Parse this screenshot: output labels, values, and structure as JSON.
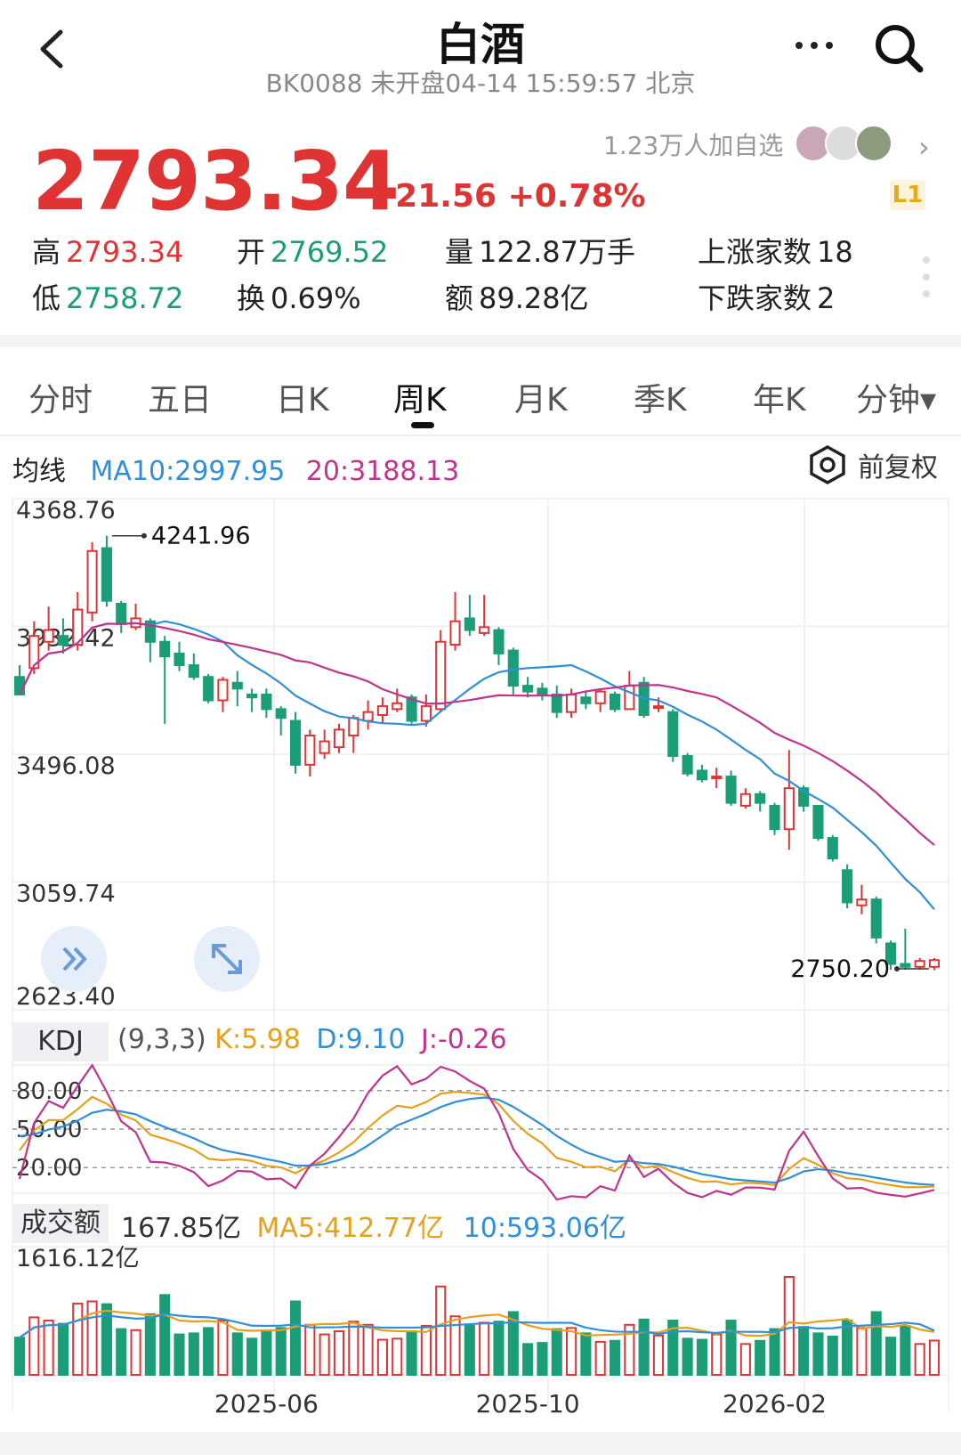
{
  "header": {
    "title": "白酒",
    "subtitle": "BK0088 未开盘04-14 15:59:57 北京"
  },
  "quote": {
    "price": "2793.34",
    "change": "+21.56 +0.78%",
    "followers": "1.23万人加自选",
    "level_badge": "L1",
    "stats": {
      "high_label": "高",
      "high": "2793.34",
      "open_label": "开",
      "open": "2769.52",
      "volume_label": "量",
      "volume": "122.87万手",
      "up_label": "上涨家数",
      "up": "18",
      "low_label": "低",
      "low": "2758.72",
      "turnover_label": "换",
      "turnover": "0.69%",
      "amount_label": "额",
      "amount": "89.28亿",
      "down_label": "下跌家数",
      "down": "2"
    }
  },
  "tabs": [
    "分时",
    "五日",
    "日K",
    "周K",
    "月K",
    "季K",
    "年K",
    "分钟▾"
  ],
  "active_tab": "周K",
  "ma": {
    "label": "均线",
    "ma10": "MA10:2997.95",
    "ma20": "20:3188.13"
  },
  "adjust_label": "前复权",
  "kdj": {
    "label": "KDJ",
    "params": "(9,3,3)",
    "k": "K:5.98",
    "d": "D:9.10",
    "j": "J:-0.26"
  },
  "volume_panel": {
    "label": "成交额",
    "value": "167.85亿",
    "ma5": "MA5:412.77亿",
    "ma10": "10:593.06亿"
  },
  "colors": {
    "up": "#e03434",
    "down": "#1b9e77",
    "ma10": "#2f8fd8",
    "ma20": "#c2328f",
    "k": "#e8a01a"
  },
  "chart_data": {
    "type": "candlestick",
    "price_axis_ticks": [
      "4368.76",
      "3932.42",
      "3496.08",
      "3059.74",
      "2623.40"
    ],
    "ylim": [
      2623.4,
      4368.76
    ],
    "max_label": "4241.96",
    "min_label": "2750.20",
    "date_ticks": [
      {
        "index": 17,
        "label": "2025-06"
      },
      {
        "index": 35,
        "label": "2025-10"
      },
      {
        "index": 52,
        "label": "2026-02"
      }
    ],
    "candles": [
      [
        3760,
        3700,
        3800,
        3700
      ],
      [
        3790,
        3900,
        3950,
        3770
      ],
      [
        3880,
        3920,
        4000,
        3850
      ],
      [
        3900,
        3870,
        3960,
        3840
      ],
      [
        3870,
        3990,
        4050,
        3850
      ],
      [
        3980,
        4190,
        4220,
        3950
      ],
      [
        4200,
        4020,
        4242,
        4000
      ],
      [
        4010,
        3940,
        4020,
        3910
      ],
      [
        3930,
        3960,
        4010,
        3920
      ],
      [
        3950,
        3880,
        3960,
        3810
      ],
      [
        3880,
        3830,
        3900,
        3600
      ],
      [
        3840,
        3800,
        3880,
        3780
      ],
      [
        3800,
        3760,
        3840,
        3750
      ],
      [
        3760,
        3680,
        3770,
        3670
      ],
      [
        3680,
        3750,
        3760,
        3640
      ],
      [
        3740,
        3720,
        3780,
        3660
      ],
      [
        3700,
        3690,
        3720,
        3640
      ],
      [
        3700,
        3650,
        3720,
        3620
      ],
      [
        3650,
        3620,
        3660,
        3560
      ],
      [
        3610,
        3460,
        3640,
        3430
      ],
      [
        3460,
        3560,
        3580,
        3420
      ],
      [
        3500,
        3540,
        3580,
        3480
      ],
      [
        3520,
        3580,
        3600,
        3500
      ],
      [
        3560,
        3620,
        3630,
        3500
      ],
      [
        3610,
        3640,
        3680,
        3580
      ],
      [
        3630,
        3660,
        3690,
        3600
      ],
      [
        3650,
        3670,
        3720,
        3640
      ],
      [
        3690,
        3610,
        3700,
        3600
      ],
      [
        3610,
        3660,
        3700,
        3590
      ],
      [
        3650,
        3880,
        3920,
        3640
      ],
      [
        3870,
        3950,
        4050,
        3850
      ],
      [
        3960,
        3920,
        4040,
        3900
      ],
      [
        3910,
        3930,
        4040,
        3900
      ],
      [
        3920,
        3840,
        3930,
        3800
      ],
      [
        3850,
        3730,
        3860,
        3700
      ],
      [
        3730,
        3710,
        3760,
        3690
      ],
      [
        3720,
        3700,
        3740,
        3680
      ],
      [
        3700,
        3640,
        3730,
        3620
      ],
      [
        3640,
        3700,
        3720,
        3620
      ],
      [
        3690,
        3670,
        3710,
        3650
      ],
      [
        3670,
        3710,
        3720,
        3640
      ],
      [
        3700,
        3650,
        3710,
        3640
      ],
      [
        3650,
        3730,
        3780,
        3650
      ],
      [
        3740,
        3630,
        3760,
        3620
      ],
      [
        3660,
        3660,
        3690,
        3640
      ],
      [
        3640,
        3490,
        3650,
        3470
      ],
      [
        3490,
        3430,
        3500,
        3420
      ],
      [
        3440,
        3410,
        3460,
        3400
      ],
      [
        3420,
        3420,
        3450,
        3380
      ],
      [
        3420,
        3330,
        3440,
        3320
      ],
      [
        3320,
        3360,
        3380,
        3310
      ],
      [
        3360,
        3330,
        3370,
        3300
      ],
      [
        3320,
        3240,
        3330,
        3220
      ],
      [
        3240,
        3380,
        3510,
        3170
      ],
      [
        3380,
        3320,
        3390,
        3300
      ],
      [
        3320,
        3210,
        3320,
        3200
      ],
      [
        3210,
        3140,
        3220,
        3130
      ],
      [
        3100,
        2990,
        3120,
        2970
      ],
      [
        2980,
        3000,
        3050,
        2950
      ],
      [
        3000,
        2870,
        3010,
        2850
      ],
      [
        2850,
        2780,
        2860,
        2760
      ],
      [
        2780,
        2770,
        2900,
        2760
      ],
      [
        2770,
        2790,
        2800,
        2760
      ],
      [
        2770,
        2793,
        2800,
        2759
      ]
    ],
    "ma10_label": "MA10",
    "ma20_label": "20",
    "kdj_ticks": [
      "80.00",
      "50.00",
      "20.00"
    ],
    "volume_max_label": "1616.12亿"
  }
}
